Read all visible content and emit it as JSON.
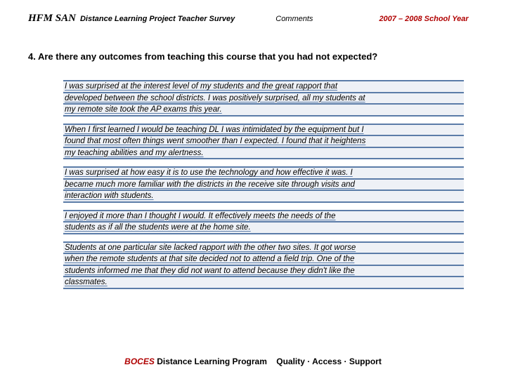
{
  "header": {
    "hfm_san": "HFM SAN",
    "project_title": "Distance Learning Project  Teacher Survey",
    "comments_label": "Comments",
    "school_year": "2007 – 2008 School Year"
  },
  "question": "4. Are there any outcomes from teaching this course that you had not expected?",
  "responses": [
    [
      "I was surprised at the interest level of my students and the great rapport that",
      "developed between the school districts. I was positively surprised, all my students at",
      "my remote site took the AP exams this year."
    ],
    [
      "When I first learned I would be teaching DL I was intimidated by the equipment but I",
      "found that most often things went smoother than I expected. I found that it heightens",
      "my teaching abilities and my alertness."
    ],
    [
      "I was surprised at how easy it is to use the technology and how effective it was. I",
      "became much more familiar with the districts in the receive site through visits and",
      "interaction with students."
    ],
    [
      "I enjoyed it more than I thought I would. It effectively meets the needs of the",
      "students as if all the students were at the home site."
    ],
    [
      "Students at one particular site lacked rapport with the other two sites.  It got worse",
      "when the remote students at that site decided not to attend a field trip.  One of the",
      "students informed me that they did not want to attend because they didn't like the",
      "classmates."
    ]
  ],
  "footer": {
    "boces": "BOCES",
    "program": "Distance Learning Program",
    "tagline": "Quality · Access · Support"
  },
  "colors": {
    "rule": "#5b7ca8",
    "bg_line": "#eef1f6",
    "accent_red": "#b00000"
  }
}
